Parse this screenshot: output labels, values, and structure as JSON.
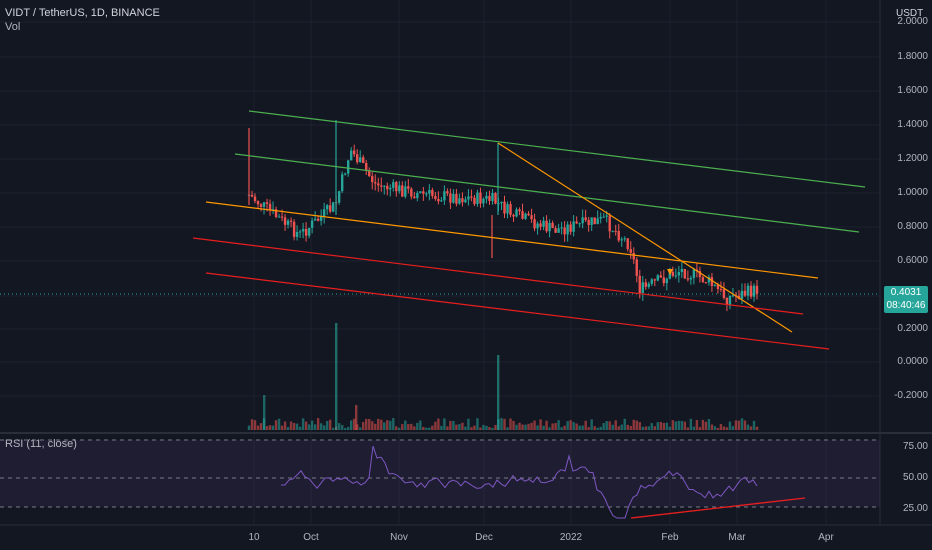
{
  "header": {
    "symbol": "VIDT / TetherUS, 1D, BINANCE",
    "volume_label": "Vol"
  },
  "rsi": {
    "label": "RSI (11, close)",
    "ticks": [
      "75.00",
      "50.00",
      "25.00"
    ]
  },
  "price_axis": {
    "currency": "USDT",
    "ticks": [
      "2.0000",
      "1.8000",
      "1.6000",
      "1.4000",
      "1.2000",
      "1.0000",
      "0.8000",
      "0.6000",
      "0.4000",
      "0.2000",
      "0.0000",
      "-0.2000"
    ]
  },
  "last_price": {
    "value": "0.4031",
    "countdown": "08:40:46"
  },
  "time_axis": {
    "ticks": [
      "10",
      "Oct",
      "Nov",
      "Dec",
      "2022",
      "Feb",
      "Mar",
      "Apr"
    ]
  },
  "colors": {
    "background": "#131722",
    "up": "#26a69a",
    "down": "#ef5350",
    "green_channel": "#4caf50",
    "orange_trend": "#ff9800",
    "red_channel": "#e91e1e",
    "rsi_line": "#7e57c2"
  }
}
